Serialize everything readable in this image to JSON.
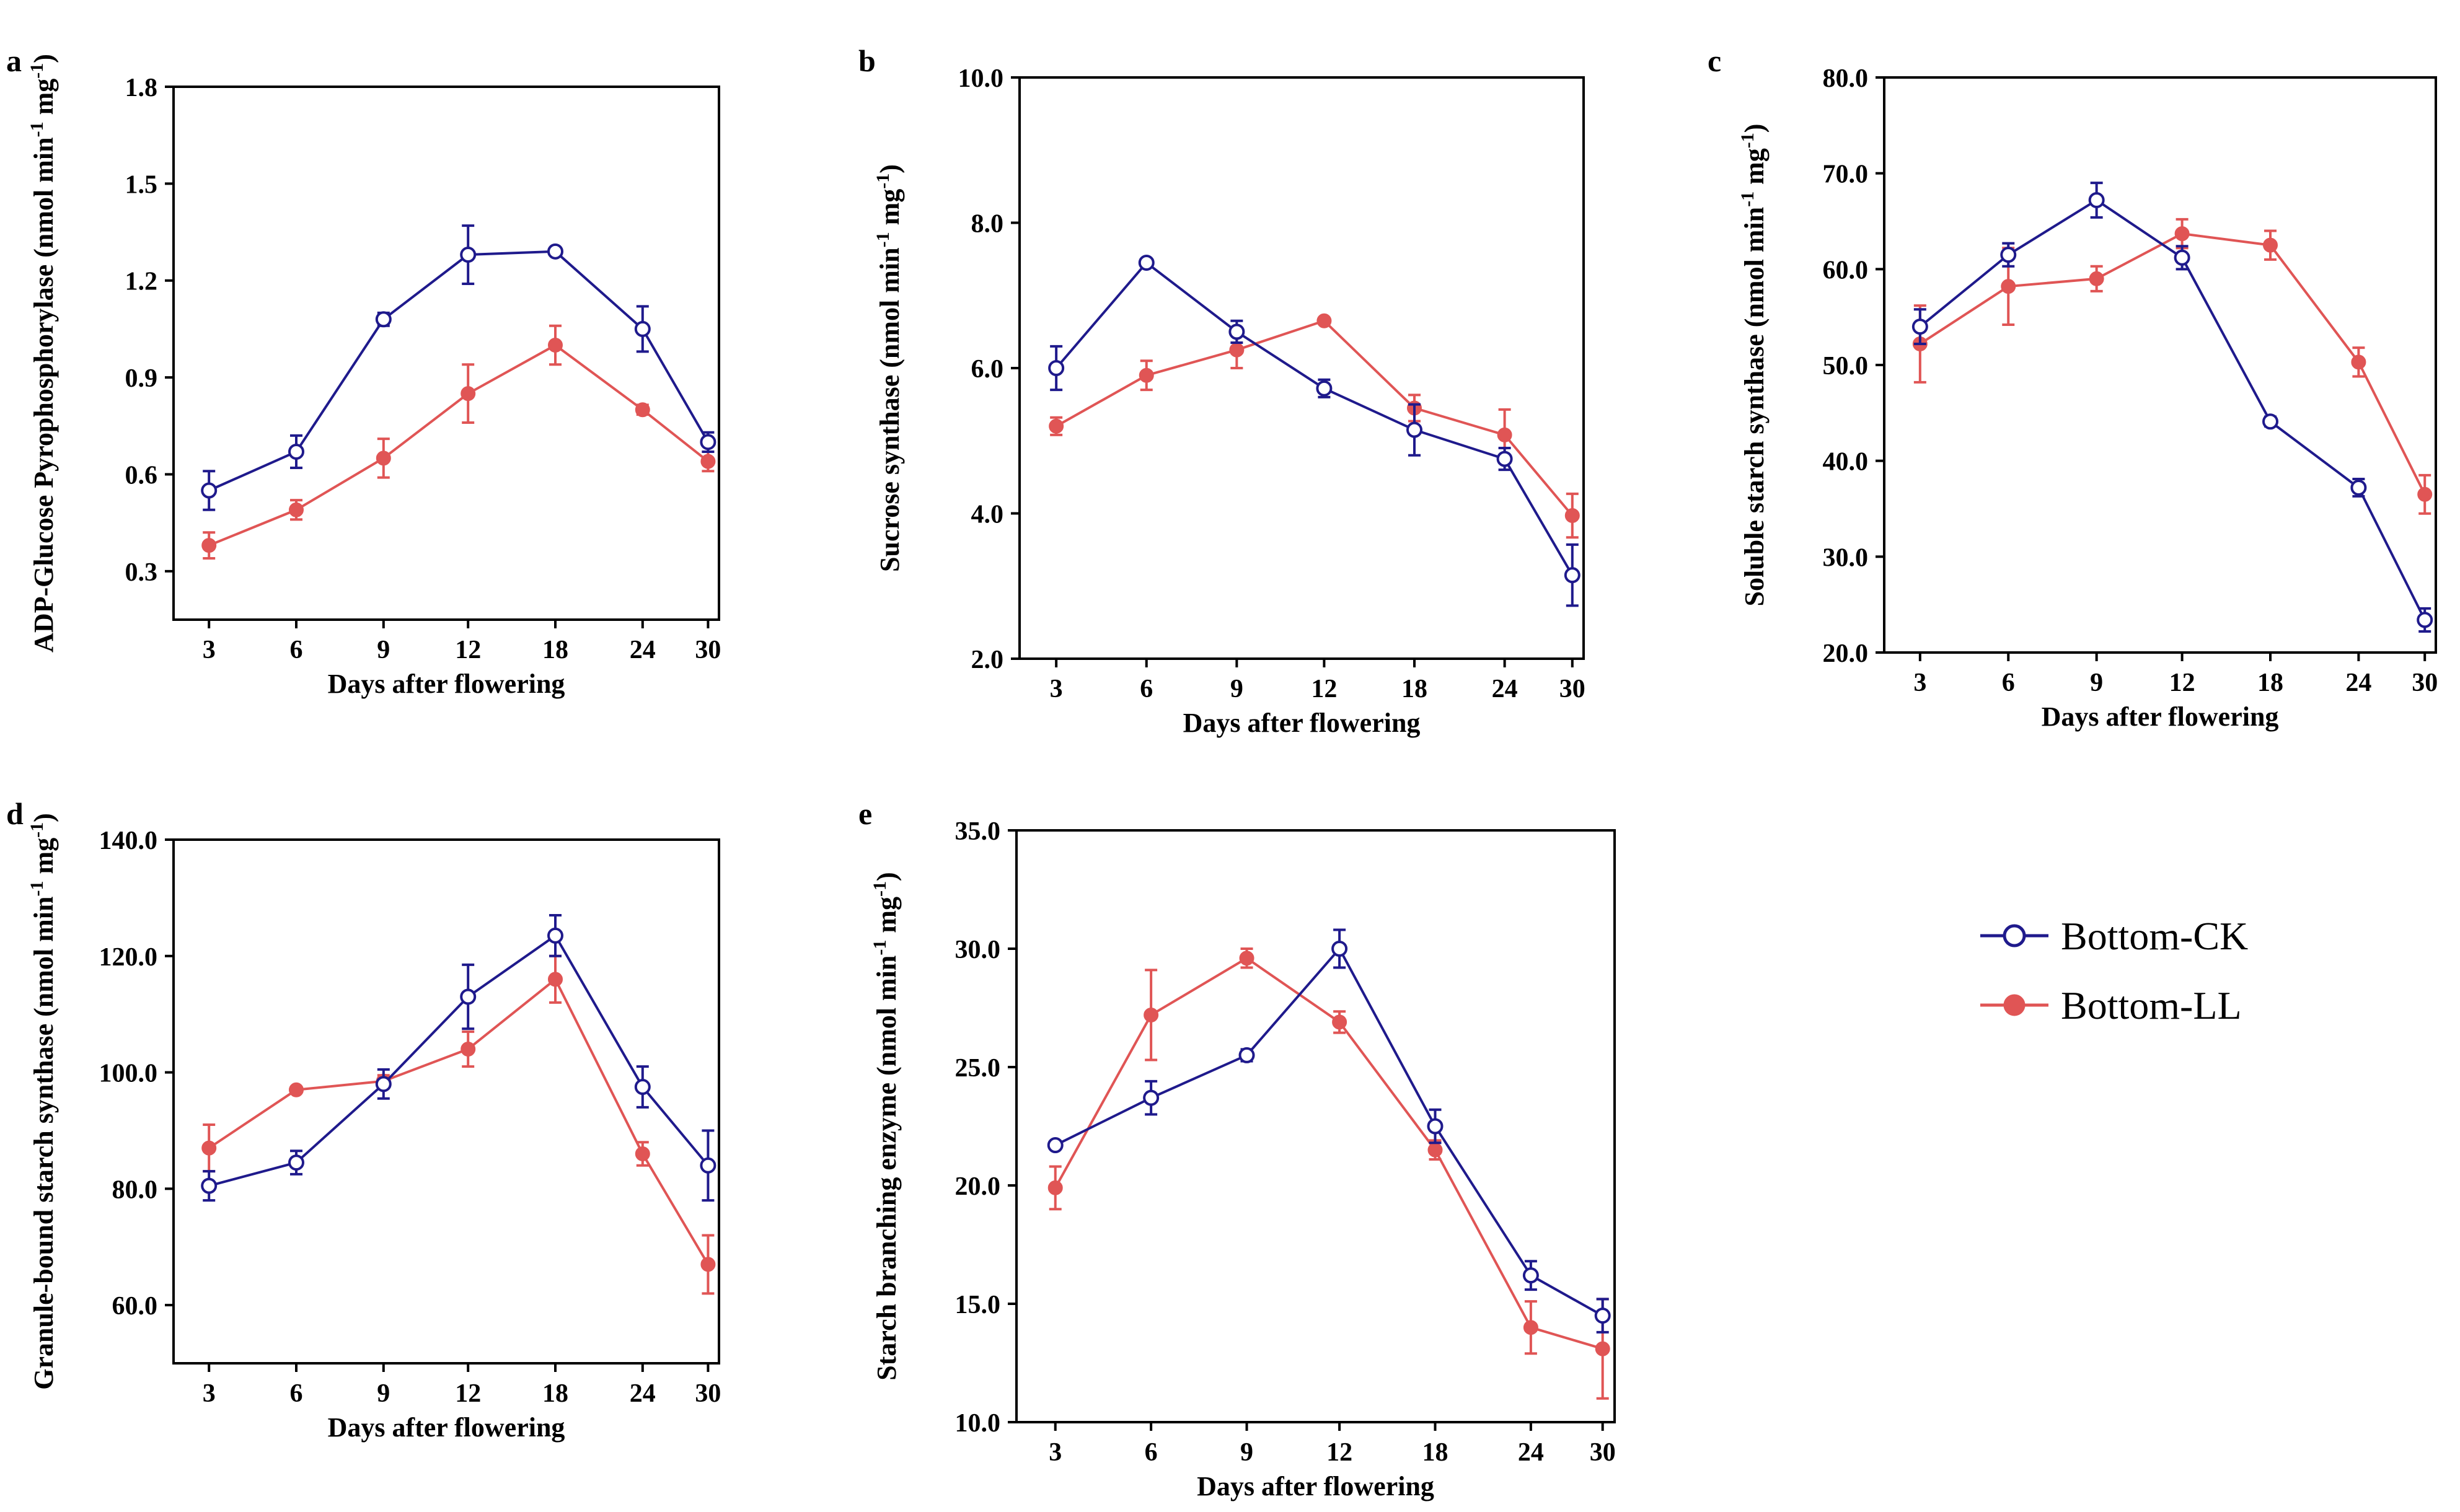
{
  "x_categories": [
    "3",
    "6",
    "9",
    "12",
    "18",
    "24",
    "30"
  ],
  "series_colors": {
    "Bottom-CK": "#1f1a8c",
    "Bottom-LL": "#e05555"
  },
  "legend": [
    {
      "name": "Bottom-CK",
      "marker": "open-circle"
    },
    {
      "name": "Bottom-LL",
      "marker": "filled-circle"
    }
  ],
  "chart_data": [
    {
      "panel": "a",
      "type": "line",
      "title": "",
      "xlabel": "Days after flowering",
      "ylabel_main": "ADP-Glucose Pyrophosphorylase (nmol min",
      "ylabel_sup1": "-1",
      "ylabel_mid": " mg",
      "ylabel_sup2": "-1",
      "ylabel_end": ")",
      "ylim": [
        0.15,
        1.8
      ],
      "yticks": [
        0.3,
        0.6,
        0.9,
        1.2,
        1.5,
        1.8
      ],
      "ytick_labels": [
        "0.3",
        "0.6",
        "0.9",
        "1.2",
        "1.5",
        "1.8"
      ],
      "categories": [
        "3",
        "6",
        "9",
        "12",
        "18",
        "24",
        "30"
      ],
      "series": [
        {
          "name": "Bottom-CK",
          "values": [
            0.55,
            0.67,
            1.08,
            1.28,
            1.29,
            1.05,
            0.7
          ],
          "errors": [
            0.06,
            0.05,
            0.02,
            0.09,
            0.01,
            0.07,
            0.03
          ]
        },
        {
          "name": "Bottom-LL",
          "values": [
            0.38,
            0.49,
            0.65,
            0.85,
            1.0,
            0.8,
            0.64
          ],
          "errors": [
            0.04,
            0.03,
            0.06,
            0.09,
            0.06,
            0.015,
            0.03
          ]
        }
      ]
    },
    {
      "panel": "b",
      "type": "line",
      "title": "",
      "xlabel": "Days after flowering",
      "ylabel_main": "Sucrose synthase (nmol min",
      "ylabel_sup1": "-1",
      "ylabel_mid": " mg",
      "ylabel_sup2": "-1",
      "ylabel_end": ")",
      "ylim": [
        2.0,
        10.0
      ],
      "yticks": [
        2.0,
        4.0,
        6.0,
        8.0,
        10.0
      ],
      "ytick_labels": [
        "2.0",
        "4.0",
        "6.0",
        "8.0",
        "10.0"
      ],
      "categories": [
        "3",
        "6",
        "9",
        "12",
        "18",
        "24",
        "30"
      ],
      "series": [
        {
          "name": "Bottom-CK",
          "values": [
            6.0,
            7.45,
            6.5,
            5.72,
            5.15,
            4.75,
            3.15
          ],
          "errors": [
            0.3,
            0.05,
            0.15,
            0.12,
            0.35,
            0.15,
            0.42
          ]
        },
        {
          "name": "Bottom-LL",
          "values": [
            5.2,
            5.9,
            6.25,
            6.65,
            5.45,
            5.08,
            3.97
          ],
          "errors": [
            0.12,
            0.2,
            0.25,
            0.03,
            0.18,
            0.35,
            0.3
          ]
        }
      ]
    },
    {
      "panel": "c",
      "type": "line",
      "title": "",
      "xlabel": "Days after flowering",
      "ylabel_main": "Soluble starch synthase (nmol min",
      "ylabel_sup1": "-1",
      "ylabel_mid": " mg",
      "ylabel_sup2": "-1",
      "ylabel_end": ")",
      "ylim": [
        20.0,
        80.0
      ],
      "yticks": [
        20.0,
        30.0,
        40.0,
        50.0,
        60.0,
        70.0,
        80.0
      ],
      "ytick_labels": [
        "20.0",
        "30.0",
        "40.0",
        "50.0",
        "60.0",
        "70.0",
        "80.0"
      ],
      "categories": [
        "3",
        "6",
        "9",
        "12",
        "18",
        "24",
        "30"
      ],
      "series": [
        {
          "name": "Bottom-CK",
          "values": [
            54.0,
            61.5,
            67.2,
            61.2,
            44.1,
            37.2,
            23.4
          ],
          "errors": [
            1.8,
            1.2,
            1.8,
            1.2,
            0.5,
            0.9,
            1.2
          ]
        },
        {
          "name": "Bottom-LL",
          "values": [
            52.2,
            58.2,
            59.0,
            63.7,
            62.5,
            50.3,
            36.5
          ],
          "errors": [
            4.0,
            4.0,
            1.3,
            1.5,
            1.5,
            1.5,
            2.0
          ]
        }
      ]
    },
    {
      "panel": "d",
      "type": "line",
      "title": "",
      "xlabel": "Days after flowering",
      "ylabel_main": "Granule-bound starch synthase (nmol min",
      "ylabel_sup1": "-1",
      "ylabel_mid": " mg",
      "ylabel_sup2": "-1",
      "ylabel_end": ")",
      "ylim": [
        50.0,
        140.0
      ],
      "yticks": [
        60.0,
        80.0,
        100.0,
        120.0,
        140.0
      ],
      "ytick_labels": [
        "60.0",
        "80.0",
        "100.0",
        "120.0",
        "140.0"
      ],
      "categories": [
        "3",
        "6",
        "9",
        "12",
        "18",
        "24",
        "30"
      ],
      "series": [
        {
          "name": "Bottom-CK",
          "values": [
            80.5,
            84.5,
            98.0,
            113.0,
            123.5,
            97.5,
            84.0
          ],
          "errors": [
            2.5,
            2.0,
            2.5,
            5.5,
            3.5,
            3.5,
            6.0
          ]
        },
        {
          "name": "Bottom-LL",
          "values": [
            87.0,
            97.0,
            98.5,
            104.0,
            116.0,
            86.0,
            67.0
          ],
          "errors": [
            4.0,
            0.5,
            1.0,
            3.0,
            4.0,
            2.0,
            5.0
          ]
        }
      ]
    },
    {
      "panel": "e",
      "type": "line",
      "title": "",
      "xlabel": "Days after flowering",
      "ylabel_main": "Starch branching enzyme (nmol min",
      "ylabel_sup1": "-1",
      "ylabel_mid": " mg",
      "ylabel_sup2": "-1",
      "ylabel_end": ")",
      "ylim": [
        10.0,
        35.0
      ],
      "yticks": [
        10.0,
        15.0,
        20.0,
        25.0,
        30.0,
        35.0
      ],
      "ytick_labels": [
        "10.0",
        "15.0",
        "20.0",
        "25.0",
        "30.0",
        "35.0"
      ],
      "categories": [
        "3",
        "6",
        "9",
        "12",
        "18",
        "24",
        "30"
      ],
      "series": [
        {
          "name": "Bottom-CK",
          "values": [
            21.7,
            23.7,
            25.5,
            30.0,
            22.5,
            16.2,
            14.5
          ],
          "errors": [
            0.1,
            0.7,
            0.25,
            0.8,
            0.7,
            0.6,
            0.7
          ]
        },
        {
          "name": "Bottom-LL",
          "values": [
            19.9,
            27.2,
            29.6,
            26.9,
            21.5,
            14.0,
            13.1
          ],
          "errors": [
            0.9,
            1.9,
            0.4,
            0.45,
            0.4,
            1.1,
            2.1
          ]
        }
      ]
    }
  ]
}
